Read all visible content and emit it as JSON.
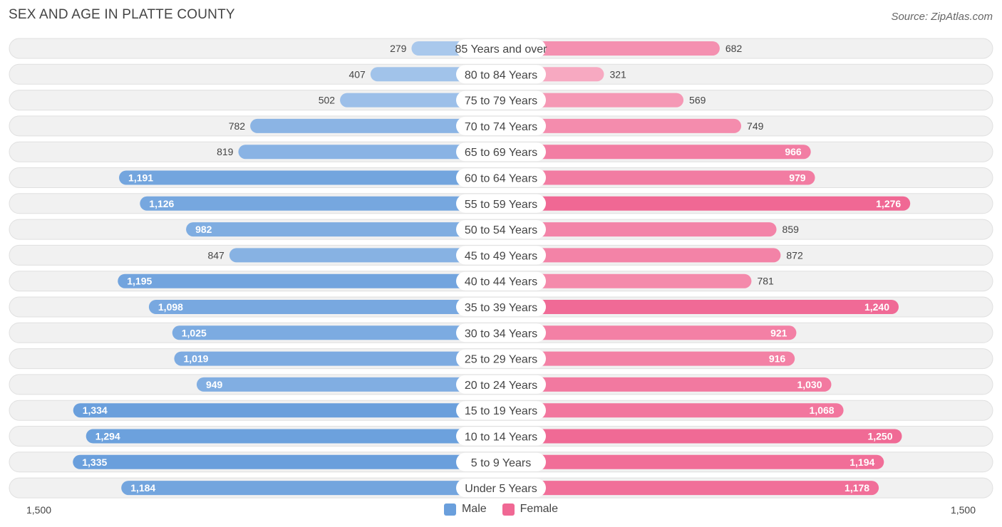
{
  "header": {
    "title": "SEX AND AGE IN PLATTE COUNTY",
    "source": "Source: ZipAtlas.com"
  },
  "legend": {
    "male_label": "Male",
    "female_label": "Female"
  },
  "colors": {
    "male_strong": "#6a9fdc",
    "male_light": "#a9c8ec",
    "female_strong": "#f06894",
    "female_light": "#f7a9c1"
  },
  "chart_data": {
    "type": "bar",
    "orientation": "horizontal-diverging",
    "title": "SEX AND AGE IN PLATTE COUNTY",
    "categories": [
      "85 Years and over",
      "80 to 84 Years",
      "75 to 79 Years",
      "70 to 74 Years",
      "65 to 69 Years",
      "60 to 64 Years",
      "55 to 59 Years",
      "50 to 54 Years",
      "45 to 49 Years",
      "40 to 44 Years",
      "35 to 39 Years",
      "30 to 34 Years",
      "25 to 29 Years",
      "20 to 24 Years",
      "15 to 19 Years",
      "10 to 14 Years",
      "5 to 9 Years",
      "Under 5 Years"
    ],
    "series": [
      {
        "name": "Male",
        "values": [
          279,
          407,
          502,
          782,
          819,
          1191,
          1126,
          982,
          847,
          1195,
          1098,
          1025,
          1019,
          949,
          1334,
          1294,
          1335,
          1184
        ],
        "labels": [
          "279",
          "407",
          "502",
          "782",
          "819",
          "1,191",
          "1,126",
          "982",
          "847",
          "1,195",
          "1,098",
          "1,025",
          "1,019",
          "949",
          "1,334",
          "1,294",
          "1,335",
          "1,184"
        ]
      },
      {
        "name": "Female",
        "values": [
          682,
          321,
          569,
          749,
          966,
          979,
          1276,
          859,
          872,
          781,
          1240,
          921,
          916,
          1030,
          1068,
          1250,
          1194,
          1178
        ],
        "labels": [
          "682",
          "321",
          "569",
          "749",
          "966",
          "979",
          "1,276",
          "859",
          "872",
          "781",
          "1,240",
          "921",
          "916",
          "1,030",
          "1,068",
          "1,250",
          "1,194",
          "1,178"
        ]
      }
    ],
    "xlim": [
      -1500,
      1500
    ],
    "axis_tick_labels": {
      "left": "1,500",
      "right": "1,500"
    },
    "legend_position": "bottom-center"
  }
}
